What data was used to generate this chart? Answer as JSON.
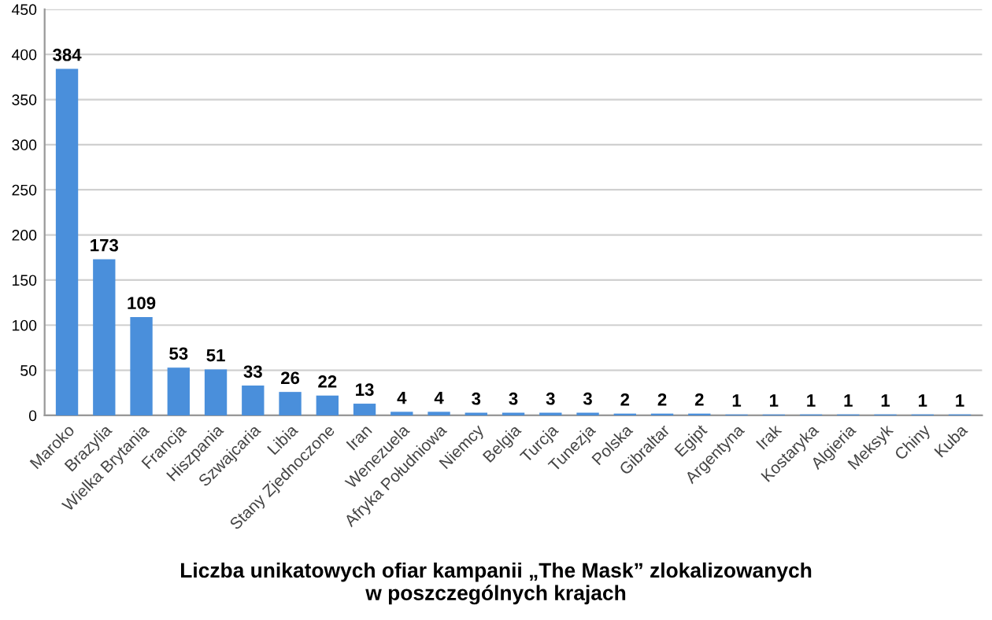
{
  "chart_data": {
    "type": "bar",
    "title": "Liczba unikatowych ofiar kampanii „The Mask” zlokalizowanych\nw poszczególnych krajach",
    "categories": [
      "Maroko",
      "Brazylia",
      "Wielka Brytania",
      "Francja",
      "Hiszpania",
      "Szwajcaria",
      "Libia",
      "Stany Zjednoczone",
      "Iran",
      "Wenezuela",
      "Afryka Południowa",
      "Niemcy",
      "Belgia",
      "Turcja",
      "Tunezja",
      "Polska",
      "Gibraltar",
      "Egipt",
      "Argentyna",
      "Irak",
      "Kostaryka",
      "Algieria",
      "Meksyk",
      "Chiny",
      "Kuba"
    ],
    "values": [
      384,
      173,
      109,
      53,
      51,
      33,
      26,
      22,
      13,
      4,
      4,
      3,
      3,
      3,
      3,
      2,
      2,
      2,
      1,
      1,
      1,
      1,
      1,
      1,
      1
    ],
    "color": "#4a8fdb",
    "ylim": [
      0,
      450
    ],
    "yticks": [
      0,
      50,
      100,
      150,
      200,
      250,
      300,
      350,
      400,
      450
    ],
    "grid": "y",
    "data_labels": true
  }
}
